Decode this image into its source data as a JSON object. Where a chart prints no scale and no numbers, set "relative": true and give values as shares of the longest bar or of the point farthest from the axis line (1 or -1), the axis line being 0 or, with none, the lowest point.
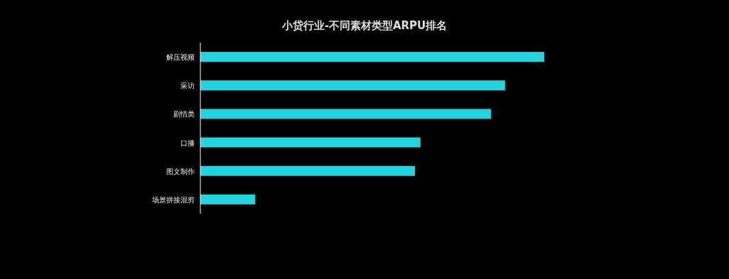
{
  "chart_data": {
    "type": "bar",
    "title": "小贷行业-不同素材类型ARPU排名",
    "orientation": "horizontal",
    "relative": true,
    "categories": [
      "解压视频",
      "采访",
      "剧情类",
      "口播",
      "图文制作",
      "场景拼接混剪"
    ],
    "values": [
      1,
      0.886,
      0.845,
      0.64,
      0.624,
      0.159
    ],
    "color": "#22d3e0"
  }
}
